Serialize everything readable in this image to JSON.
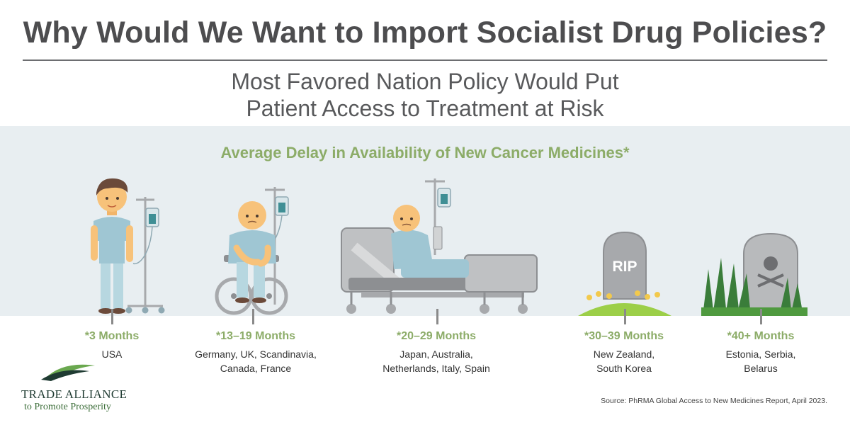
{
  "header": {
    "title": "Why Would We Want to Import Socialist Drug Policies?",
    "subtitle_line1": "Most Favored Nation Policy Would Put",
    "subtitle_line2": "Patient Access to Treatment at Risk"
  },
  "band": {
    "heading": "Average Delay in Availability of New Cancer Medicines*"
  },
  "illustrations": {
    "tombstone_text": "RIP"
  },
  "columns": [
    {
      "months": "*3 Months",
      "line1": "USA",
      "line2": ""
    },
    {
      "months": "*13–19 Months",
      "line1": "Germany, UK, Scandinavia,",
      "line2": "Canada, France"
    },
    {
      "months": "*20–29 Months",
      "line1": "Japan, Australia,",
      "line2": "Netherlands, Italy, Spain"
    },
    {
      "months": "*30–39 Months",
      "line1": "New Zealand,",
      "line2": "South Korea"
    },
    {
      "months": "*40+ Months",
      "line1": "Estonia, Serbia,",
      "line2": "Belarus"
    }
  ],
  "logo": {
    "name": "TRADE ALLIANCE",
    "tagline": "to Promote Prosperity"
  },
  "source": "Source: PhRMA Global Access to New Medicines Report, April 2023.",
  "colors": {
    "title": "#4d4d4f",
    "accent_green": "#8cac68",
    "band_bg": "#e8eef1",
    "skin": "#f7c27a",
    "gown": "#9fc6d3",
    "stone": "#a7a9ac"
  }
}
